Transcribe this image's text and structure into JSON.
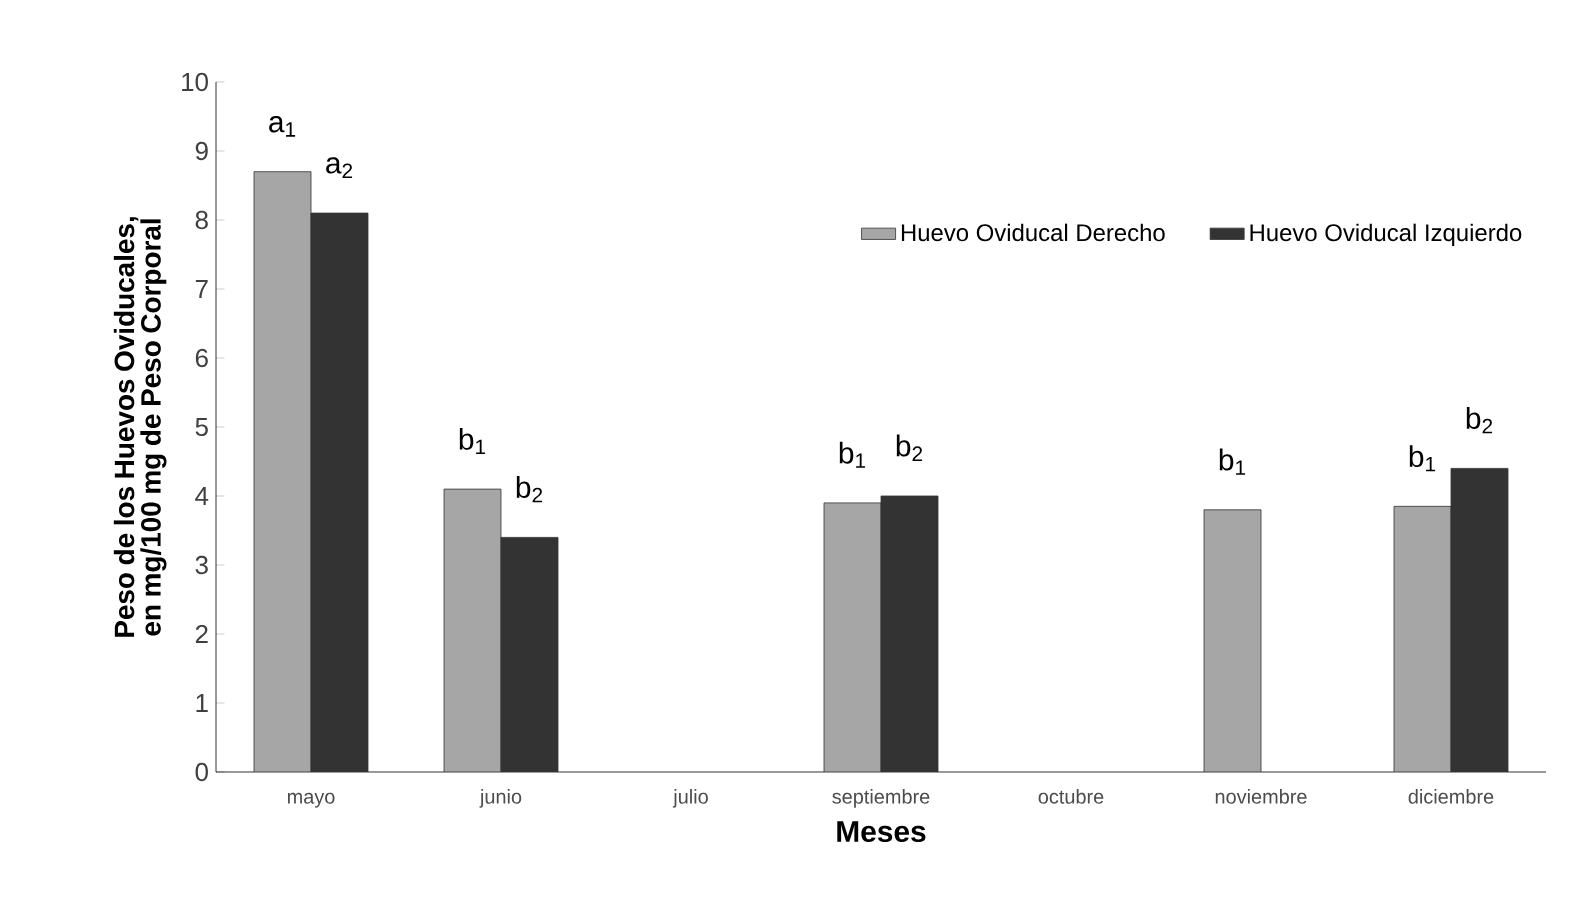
{
  "chart_data": {
    "type": "bar",
    "xlabel": "Meses",
    "ylabel": "Peso de los Huevos Oviducales, en mg/100 mg de Peso Corporal",
    "categories": [
      "mayo",
      "junio",
      "julio",
      "septiembre",
      "octubre",
      "noviembre",
      "diciembre"
    ],
    "series": [
      {
        "name": "Huevo Oviducal Derecho",
        "color": "#a6a6a6",
        "values": [
          8.7,
          4.1,
          null,
          3.9,
          null,
          3.8,
          3.85
        ]
      },
      {
        "name": "Huevo Oviducal Izquierdo",
        "color": "#333333",
        "values": [
          8.1,
          3.4,
          null,
          4.0,
          null,
          null,
          4.4
        ]
      }
    ],
    "ylim": [
      0,
      10
    ],
    "yticks": [
      0,
      1,
      2,
      3,
      4,
      5,
      6,
      7,
      8,
      9,
      10
    ],
    "legend": "top right",
    "grid": false,
    "annotations": [
      {
        "text": "a$_{1}$",
        "x": "mayo",
        "y": 8.7
      },
      {
        "text": "a$_{2}$",
        "x": "mayo",
        "y": 8.1
      },
      {
        "text": "b$_{1}$",
        "x": "junio",
        "y": 4.1
      },
      {
        "text": "b$_{2}$",
        "x": "junio",
        "y": 3.4
      },
      {
        "text": "b$_{1}$",
        "x": "septiembre",
        "y": 3.9
      },
      {
        "text": "b$_{2}$",
        "x": "septiembre",
        "y": 4.0
      },
      {
        "text": "b$_{1}$",
        "x": "noviembre",
        "y": 3.8
      },
      {
        "text": "b$_{1}$",
        "x": "diciembre",
        "y": 3.85
      },
      {
        "text": "b$_{2}$",
        "x": "diciembre",
        "y": 4.4
      }
    ]
  }
}
